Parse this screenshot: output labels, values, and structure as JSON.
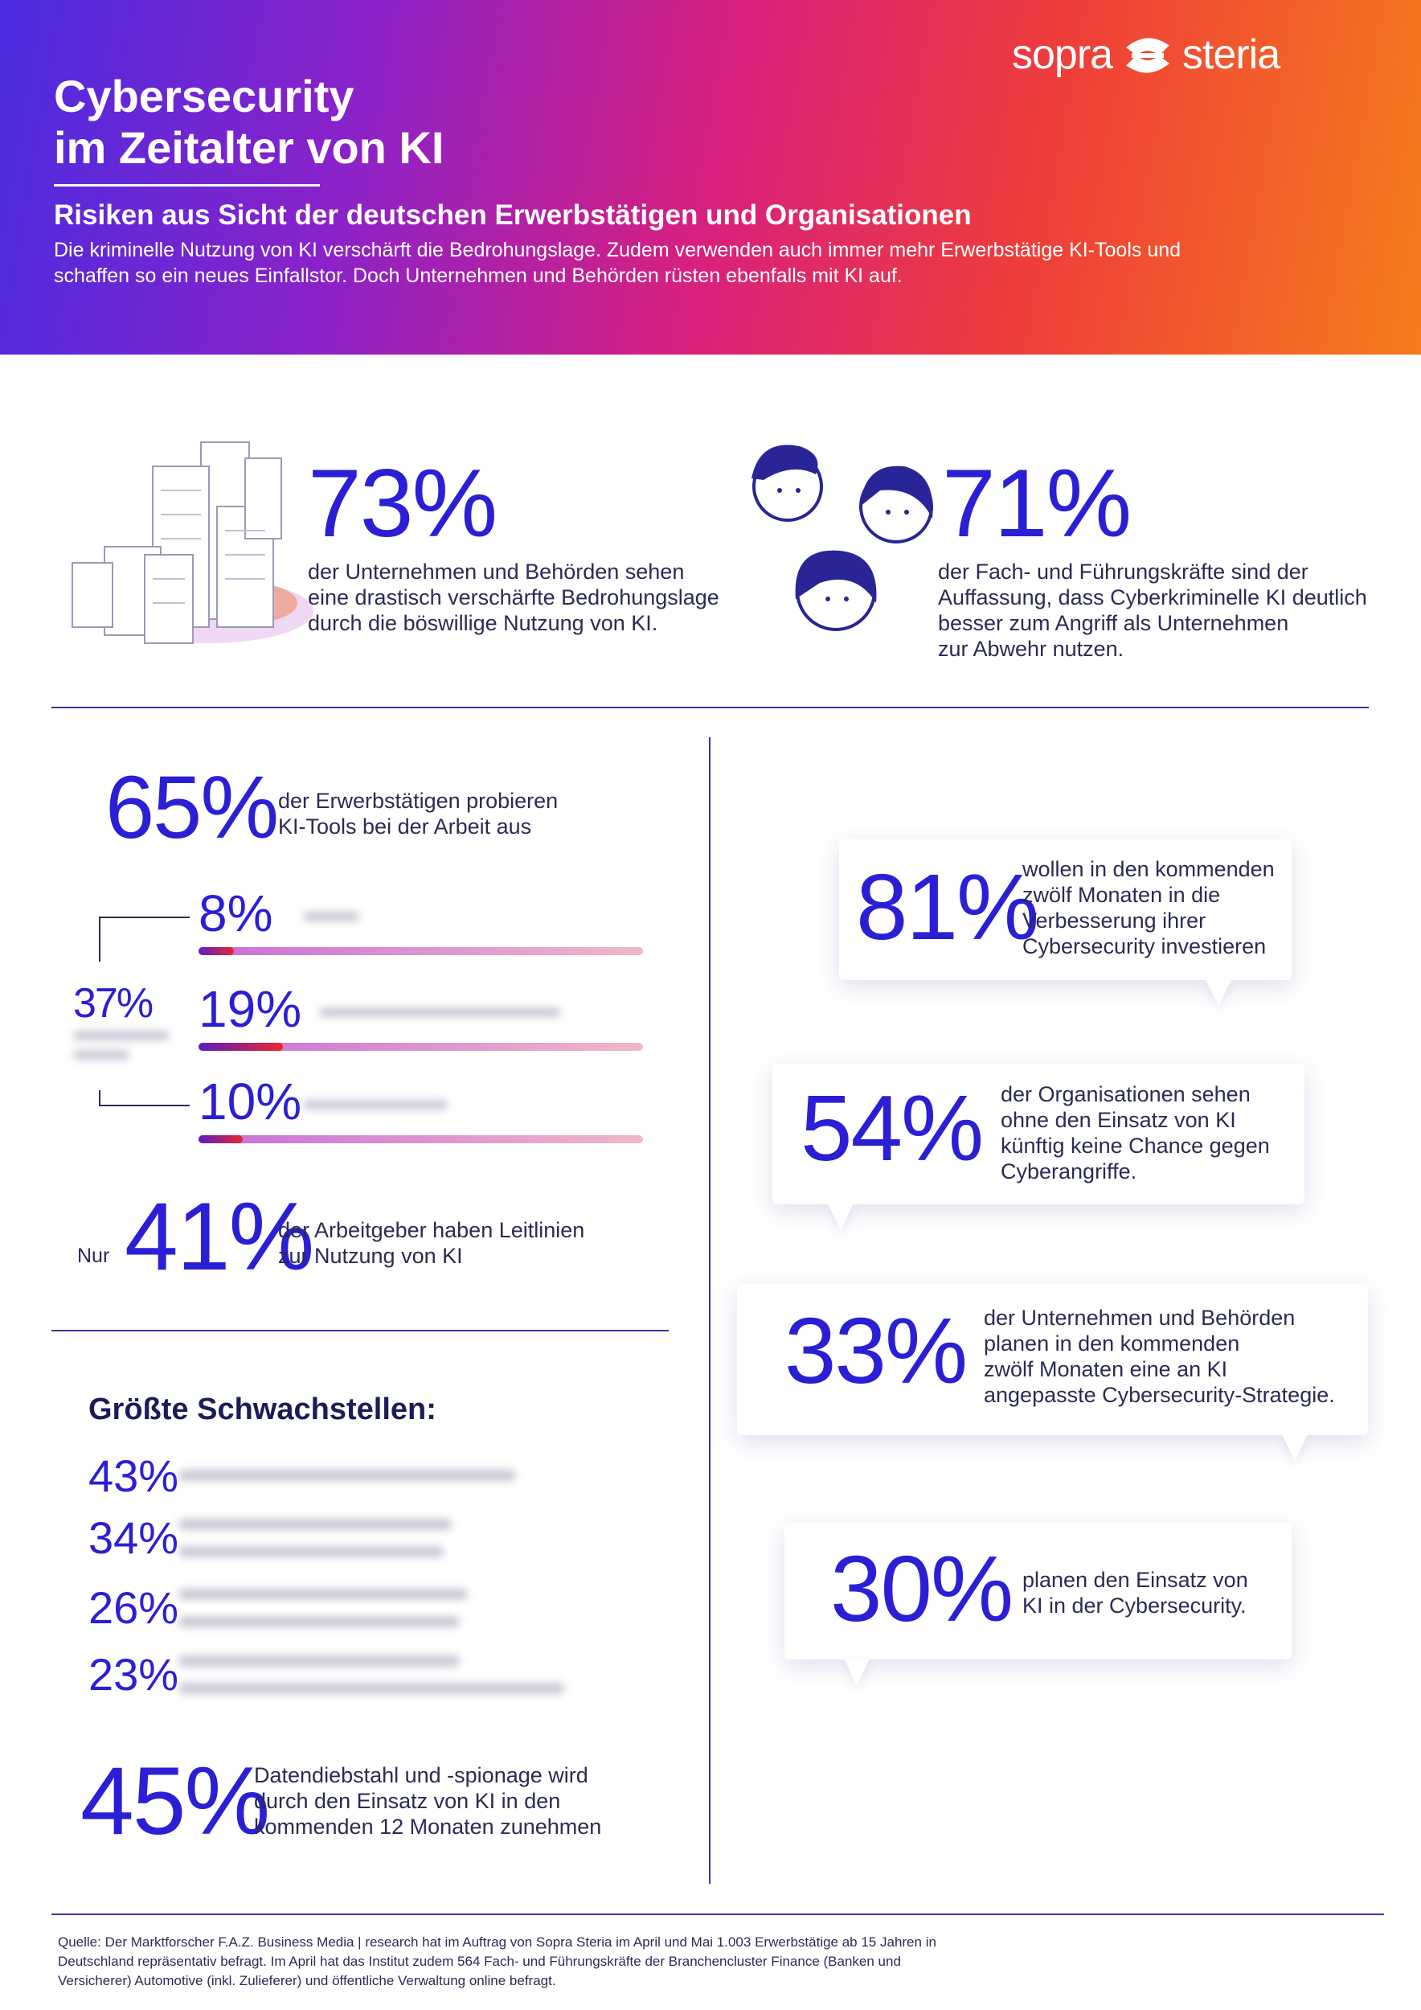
{
  "header": {
    "logo_left": "sopra",
    "logo_right": "steria",
    "title": [
      "Cybersecurity",
      "im Zeitalter von KI"
    ],
    "subtitle": "Risiken aus Sicht der deutschen Erwerbstätigen und Organisationen",
    "intro": [
      "Die kriminelle Nutzung von KI verschärft die Bedrohungslage. Zudem verwenden auch immer mehr Erwerbstätige KI-Tools und",
      "schaffen so ein neues Einfallstor. Doch Unternehmen und Behörden rüsten ebenfalls mit KI auf."
    ]
  },
  "stats_top": [
    {
      "value": "73%",
      "text": [
        "der Unternehmen und Behörden sehen",
        "eine drastisch verschärfte Bedrohungslage",
        "durch die böswillige Nutzung von KI."
      ]
    },
    {
      "value": "71%",
      "text": [
        "der Fach- und Führungskräfte sind der",
        "Auffassung, dass Cyberkriminelle KI deutlich",
        "besser zum Angriff als Unternehmen",
        "zur Abwehr nutzen."
      ]
    }
  ],
  "usage": {
    "value": "65%",
    "text": [
      "der Erwerbstätigen probieren",
      "KI-Tools bei der Arbeit aus"
    ],
    "total": "37%",
    "frequency": [
      {
        "value": 8,
        "label": "8%"
      },
      {
        "value": 19,
        "label": "19%"
      },
      {
        "value": 10,
        "label": "10%"
      }
    ]
  },
  "guidelines": {
    "prefix": "Nur",
    "value": "41%",
    "text": [
      "der Arbeitgeber haben Leitlinien",
      "zur Nutzung von KI"
    ]
  },
  "weaknesses": {
    "title": "Größte Schwachstellen:",
    "values": [
      "43%",
      "34%",
      "26%",
      "23%"
    ]
  },
  "data_theft": {
    "value": "45%",
    "text": [
      "Datendiebstahl und -spionage wird",
      "durch den Einsatz von KI in den",
      "kommenden 12 Monaten zunehmen"
    ]
  },
  "bubbles": [
    {
      "value": "81%",
      "text": [
        "wollen in den kommenden",
        "zwölf Monaten in die",
        "Verbesserung ihrer",
        "Cybersecurity investieren"
      ]
    },
    {
      "value": "54%",
      "text": [
        "der Organisationen sehen",
        "ohne den Einsatz von KI",
        "künftig keine Chance gegen",
        "Cyberangriffe."
      ]
    },
    {
      "value": "33%",
      "text": [
        "der Unternehmen und Behörden",
        "planen in den kommenden",
        "zwölf Monaten eine an KI",
        "angepasste Cybersecurity-Strategie."
      ]
    },
    {
      "value": "30%",
      "text": [
        "planen den Einsatz von",
        "KI in der Cybersecurity."
      ]
    }
  ],
  "source": [
    "Quelle: Der Marktforscher F.A.Z. Business Media | research hat im Auftrag von Sopra Steria im April und Mai 1.003 Erwerbstätige ab 15 Jahren in",
    "Deutschland repräsentativ befragt. Im April hat das Institut zudem 564 Fach- und Führungskräfte der Branchencluster Finance (Banken und",
    "Versicherer) Automotive (inkl. Zulieferer) und öffentliche Verwaltung online befragt."
  ]
}
